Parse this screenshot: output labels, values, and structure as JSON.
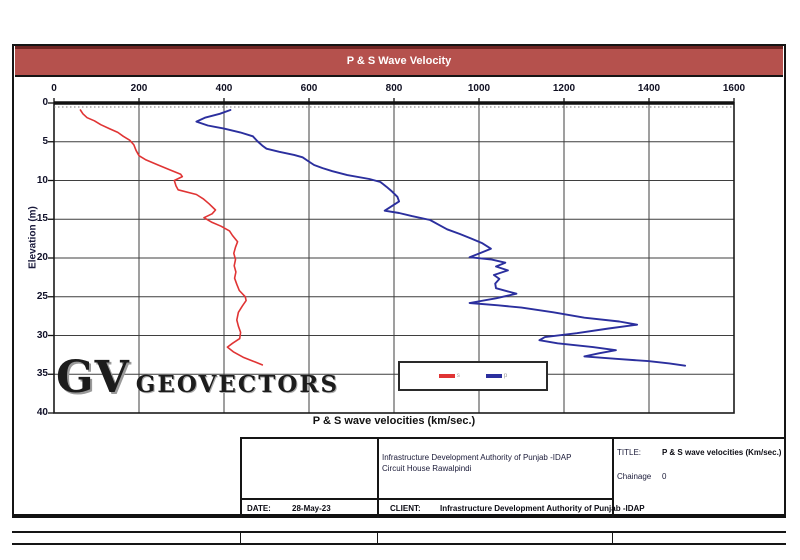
{
  "header": {
    "title": "P & S Wave Velocity"
  },
  "chart_data": {
    "type": "line",
    "title": "P & S Wave Velocity",
    "xlabel": "P & S wave velocities (km/sec.)",
    "ylabel": "Elevation  (m)",
    "xlim": [
      0,
      1600
    ],
    "ylim": [
      0,
      40
    ],
    "y_inverted": true,
    "grid": true,
    "x_ticks": [
      0,
      200,
      400,
      600,
      800,
      1000,
      1200,
      1400,
      1600
    ],
    "y_ticks": [
      0,
      5,
      10,
      15,
      20,
      25,
      30,
      35,
      40
    ],
    "legend": {
      "position": "inside-bottom-center-box",
      "entries": [
        {
          "label": "s",
          "color": "#e03434"
        },
        {
          "label": "p",
          "color": "#2b2f9e"
        }
      ]
    },
    "series": [
      {
        "name": "s",
        "color": "#e03434",
        "points": [
          [
            62,
            0.9
          ],
          [
            68,
            1.4
          ],
          [
            78,
            1.9
          ],
          [
            95,
            2.3
          ],
          [
            110,
            2.8
          ],
          [
            130,
            3.3
          ],
          [
            150,
            3.8
          ],
          [
            163,
            4.3
          ],
          [
            178,
            4.8
          ],
          [
            188,
            5.4
          ],
          [
            193,
            6.1
          ],
          [
            200,
            6.8
          ],
          [
            215,
            7.3
          ],
          [
            245,
            8.0
          ],
          [
            272,
            8.6
          ],
          [
            298,
            9.2
          ],
          [
            302,
            9.5
          ],
          [
            283,
            10.0
          ],
          [
            287,
            10.7
          ],
          [
            292,
            11.2
          ],
          [
            335,
            11.8
          ],
          [
            352,
            12.4
          ],
          [
            365,
            13.0
          ],
          [
            380,
            13.8
          ],
          [
            372,
            14.3
          ],
          [
            353,
            14.8
          ],
          [
            372,
            15.4
          ],
          [
            393,
            15.9
          ],
          [
            413,
            16.5
          ],
          [
            420,
            17.1
          ],
          [
            432,
            17.9
          ],
          [
            427,
            18.6
          ],
          [
            423,
            19.4
          ],
          [
            427,
            20.2
          ],
          [
            424,
            21.0
          ],
          [
            428,
            21.8
          ],
          [
            425,
            22.6
          ],
          [
            430,
            23.4
          ],
          [
            436,
            24.2
          ],
          [
            450,
            25.0
          ],
          [
            452,
            25.5
          ],
          [
            443,
            26.2
          ],
          [
            434,
            27.0
          ],
          [
            430,
            28.0
          ],
          [
            434,
            28.8
          ],
          [
            439,
            29.6
          ],
          [
            437,
            30.4
          ],
          [
            420,
            31.0
          ],
          [
            408,
            31.5
          ],
          [
            422,
            32.1
          ],
          [
            445,
            32.8
          ],
          [
            468,
            33.3
          ],
          [
            490,
            33.8
          ]
        ]
      },
      {
        "name": "p",
        "color": "#2b2f9e",
        "points": [
          [
            415,
            0.9
          ],
          [
            390,
            1.4
          ],
          [
            355,
            1.9
          ],
          [
            335,
            2.4
          ],
          [
            362,
            2.9
          ],
          [
            400,
            3.3
          ],
          [
            438,
            3.8
          ],
          [
            468,
            4.3
          ],
          [
            478,
            4.9
          ],
          [
            490,
            5.5
          ],
          [
            500,
            5.9
          ],
          [
            530,
            6.3
          ],
          [
            565,
            6.7
          ],
          [
            585,
            7.0
          ],
          [
            598,
            7.5
          ],
          [
            612,
            8.0
          ],
          [
            632,
            8.4
          ],
          [
            655,
            8.8
          ],
          [
            690,
            9.3
          ],
          [
            742,
            9.8
          ],
          [
            768,
            10.2
          ],
          [
            782,
            10.8
          ],
          [
            795,
            11.4
          ],
          [
            808,
            12.1
          ],
          [
            812,
            12.7
          ],
          [
            795,
            13.3
          ],
          [
            778,
            13.9
          ],
          [
            812,
            14.2
          ],
          [
            842,
            14.6
          ],
          [
            885,
            15.1
          ],
          [
            905,
            15.7
          ],
          [
            925,
            16.3
          ],
          [
            955,
            16.9
          ],
          [
            982,
            17.5
          ],
          [
            1008,
            18.1
          ],
          [
            1028,
            18.8
          ],
          [
            1002,
            19.4
          ],
          [
            978,
            19.9
          ],
          [
            1030,
            20.2
          ],
          [
            1062,
            20.6
          ],
          [
            1040,
            21.1
          ],
          [
            1068,
            21.6
          ],
          [
            1035,
            22.2
          ],
          [
            1048,
            22.7
          ],
          [
            1038,
            23.3
          ],
          [
            1040,
            23.9
          ],
          [
            1088,
            24.6
          ],
          [
            1040,
            25.2
          ],
          [
            978,
            25.8
          ],
          [
            1045,
            26.1
          ],
          [
            1100,
            26.4
          ],
          [
            1175,
            27.0
          ],
          [
            1248,
            27.7
          ],
          [
            1330,
            28.2
          ],
          [
            1372,
            28.6
          ],
          [
            1305,
            29.1
          ],
          [
            1230,
            29.7
          ],
          [
            1155,
            30.2
          ],
          [
            1142,
            30.6
          ],
          [
            1185,
            31.0
          ],
          [
            1268,
            31.5
          ],
          [
            1322,
            31.9
          ],
          [
            1282,
            32.3
          ],
          [
            1248,
            32.7
          ],
          [
            1322,
            33.0
          ],
          [
            1398,
            33.3
          ],
          [
            1448,
            33.6
          ],
          [
            1485,
            33.9
          ]
        ]
      }
    ]
  },
  "logo": {
    "monogram": "GV",
    "name": "GEOVECTORS"
  },
  "title_block": {
    "company_line1": "Infrastructure Development Authority of Punjab -IDAP",
    "company_line2": "Circuit House Rawalpindi",
    "title_label": "TITLE:",
    "title_value": "P & S wave velocities (Km/sec.)",
    "chainage_label": "Chainage",
    "chainage_value": "0",
    "date_label": "DATE:",
    "date_value": "28-May-23",
    "client_label": "CLIENT:",
    "client_value": "Infrastructure Development Authority of Punjab -IDAP"
  },
  "colors": {
    "header_bar": "#b5514d",
    "s_wave": "#e03434",
    "p_wave": "#2b2f9e",
    "grid": "#3f3f3f"
  }
}
